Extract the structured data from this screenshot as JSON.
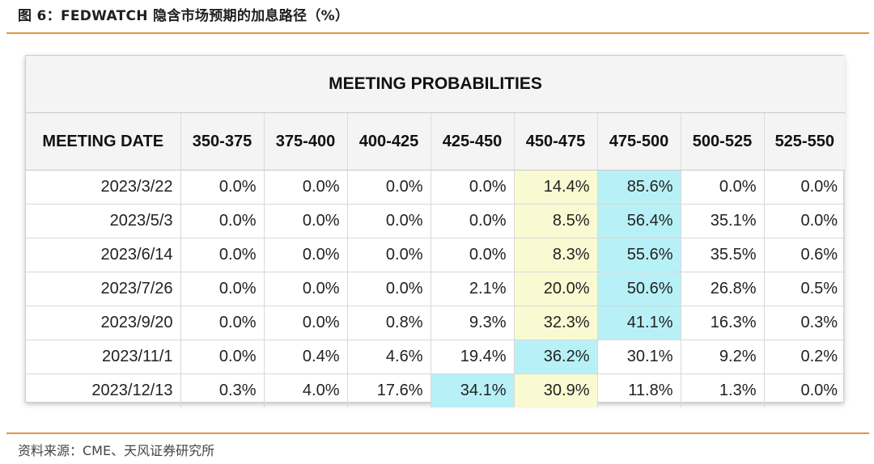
{
  "figure_title": "图 6：FEDWATCH 隐含市场预期的加息路径（%）",
  "source": "资料来源：CME、天风证券研究所",
  "colors": {
    "accent_rule": "#e8943a",
    "highlight_yellow": "#fafad2",
    "highlight_cyan": "#b7f1f7"
  },
  "chart_data": {
    "type": "table",
    "title": "MEETING PROBABILITIES",
    "columns": [
      "MEETING DATE",
      "350-375",
      "375-400",
      "400-425",
      "425-450",
      "450-475",
      "475-500",
      "500-525",
      "525-550"
    ],
    "rows": [
      {
        "date": "2023/3/22",
        "values": [
          "0.0%",
          "0.0%",
          "0.0%",
          "0.0%",
          "14.4%",
          "85.6%",
          "0.0%",
          "0.0%"
        ],
        "highlights": [
          "",
          "",
          "",
          "",
          "yellow",
          "cyan",
          "",
          ""
        ]
      },
      {
        "date": "2023/5/3",
        "values": [
          "0.0%",
          "0.0%",
          "0.0%",
          "0.0%",
          "8.5%",
          "56.4%",
          "35.1%",
          "0.0%"
        ],
        "highlights": [
          "",
          "",
          "",
          "",
          "yellow",
          "cyan",
          "",
          ""
        ]
      },
      {
        "date": "2023/6/14",
        "values": [
          "0.0%",
          "0.0%",
          "0.0%",
          "0.0%",
          "8.3%",
          "55.6%",
          "35.5%",
          "0.6%"
        ],
        "highlights": [
          "",
          "",
          "",
          "",
          "yellow",
          "cyan",
          "",
          ""
        ]
      },
      {
        "date": "2023/7/26",
        "values": [
          "0.0%",
          "0.0%",
          "0.0%",
          "2.1%",
          "20.0%",
          "50.6%",
          "26.8%",
          "0.5%"
        ],
        "highlights": [
          "",
          "",
          "",
          "",
          "yellow",
          "cyan",
          "",
          ""
        ]
      },
      {
        "date": "2023/9/20",
        "values": [
          "0.0%",
          "0.0%",
          "0.8%",
          "9.3%",
          "32.3%",
          "41.1%",
          "16.3%",
          "0.3%"
        ],
        "highlights": [
          "",
          "",
          "",
          "",
          "yellow",
          "cyan",
          "",
          ""
        ]
      },
      {
        "date": "2023/11/1",
        "values": [
          "0.0%",
          "0.4%",
          "4.6%",
          "19.4%",
          "36.2%",
          "30.1%",
          "9.2%",
          "0.2%"
        ],
        "highlights": [
          "",
          "",
          "",
          "",
          "cyan",
          "",
          "",
          ""
        ]
      },
      {
        "date": "2023/12/13",
        "values": [
          "0.3%",
          "4.0%",
          "17.6%",
          "34.1%",
          "30.9%",
          "11.8%",
          "1.3%",
          "0.0%"
        ],
        "highlights": [
          "",
          "",
          "",
          "cyan",
          "yellow",
          "",
          "",
          ""
        ]
      }
    ]
  }
}
